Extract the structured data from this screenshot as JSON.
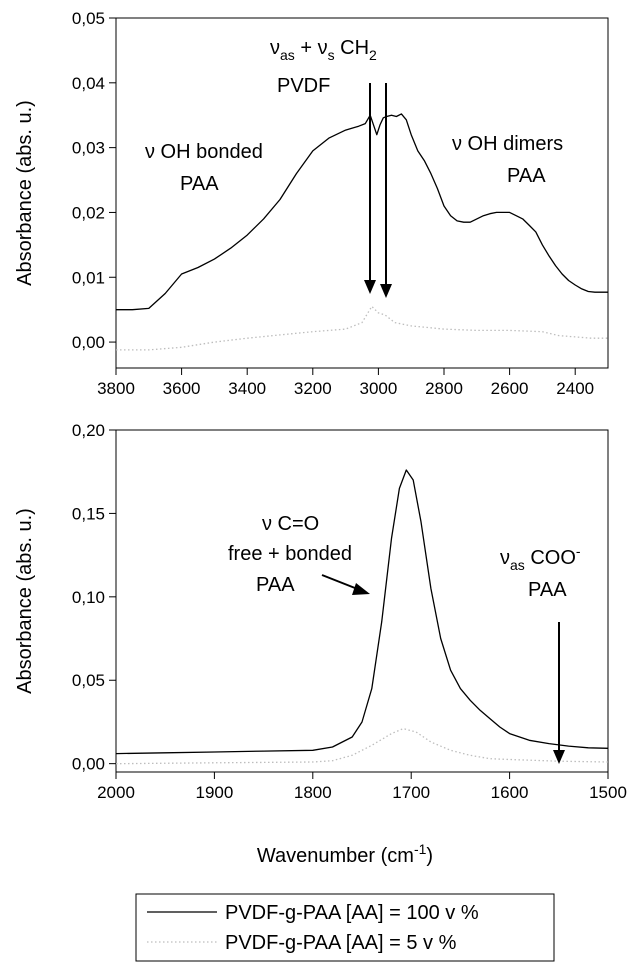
{
  "chart_data": [
    {
      "type": "line",
      "xlim": [
        3800,
        2300
      ],
      "ylim": [
        -0.004,
        0.05
      ],
      "x_reversed": true,
      "xticks": [
        3800,
        3600,
        3400,
        3200,
        3000,
        2800,
        2600,
        2400
      ],
      "xtick_labels": [
        "3800",
        "3600",
        "3400",
        "3200",
        "3000",
        "2800",
        "2600",
        "2400"
      ],
      "yticks": [
        0.0,
        0.01,
        0.02,
        0.03,
        0.04,
        0.05
      ],
      "ytick_labels": [
        "0,00",
        "0,01",
        "0,02",
        "0,03",
        "0,04",
        "0,05"
      ],
      "ylabel": "Absorbance (abs. u.)",
      "series": [
        {
          "name": "PVDF-g-PAA [AA] = 100 v %",
          "style": "solid",
          "color": "#000000",
          "x": [
            3800,
            3750,
            3700,
            3650,
            3600,
            3550,
            3500,
            3450,
            3400,
            3350,
            3300,
            3250,
            3200,
            3150,
            3100,
            3060,
            3040,
            3025,
            3015,
            3005,
            2995,
            2985,
            2975,
            2960,
            2945,
            2930,
            2915,
            2900,
            2880,
            2860,
            2840,
            2820,
            2800,
            2780,
            2760,
            2740,
            2720,
            2700,
            2680,
            2660,
            2640,
            2620,
            2600,
            2580,
            2560,
            2540,
            2520,
            2500,
            2480,
            2460,
            2440,
            2420,
            2400,
            2380,
            2360,
            2340,
            2320,
            2300
          ],
          "y": [
            0.005,
            0.005,
            0.0052,
            0.0075,
            0.0105,
            0.0115,
            0.0128,
            0.0145,
            0.0165,
            0.019,
            0.022,
            0.026,
            0.0295,
            0.0315,
            0.0327,
            0.0333,
            0.0337,
            0.035,
            0.0335,
            0.032,
            0.0335,
            0.0346,
            0.0348,
            0.035,
            0.0348,
            0.0352,
            0.0343,
            0.032,
            0.0295,
            0.028,
            0.026,
            0.0237,
            0.021,
            0.0195,
            0.0187,
            0.0185,
            0.0185,
            0.019,
            0.0195,
            0.0198,
            0.02,
            0.02,
            0.02,
            0.0195,
            0.019,
            0.018,
            0.017,
            0.015,
            0.0133,
            0.0118,
            0.0105,
            0.0095,
            0.0088,
            0.0082,
            0.0078,
            0.0077,
            0.0077,
            0.0077
          ]
        },
        {
          "name": "PVDF-g-PAA [AA] = 5 v %",
          "style": "dotted",
          "color": "#bdbdbd",
          "x": [
            3800,
            3700,
            3600,
            3500,
            3400,
            3300,
            3200,
            3100,
            3050,
            3020,
            3000,
            2980,
            2950,
            2900,
            2800,
            2700,
            2600,
            2500,
            2450,
            2400,
            2350,
            2300
          ],
          "y": [
            -0.0012,
            -0.0012,
            -0.0008,
            0.0,
            0.0006,
            0.0011,
            0.0016,
            0.002,
            0.003,
            0.0055,
            0.0045,
            0.0042,
            0.003,
            0.0025,
            0.002,
            0.0018,
            0.0018,
            0.0016,
            0.001,
            0.0008,
            0.0006,
            0.0006
          ]
        }
      ]
    },
    {
      "type": "line",
      "xlim": [
        2000,
        1500
      ],
      "ylim": [
        -0.005,
        0.2
      ],
      "x_reversed": true,
      "xticks": [
        2000,
        1900,
        1800,
        1700,
        1600,
        1500
      ],
      "xtick_labels": [
        "2000",
        "1900",
        "1800",
        "1700",
        "1600",
        "1500"
      ],
      "yticks": [
        0.0,
        0.05,
        0.1,
        0.15,
        0.2
      ],
      "ytick_labels": [
        "0,00",
        "0,05",
        "0,10",
        "0,15",
        "0,20"
      ],
      "ylabel": "Absorbance (abs. u.)",
      "series": [
        {
          "name": "PVDF-g-PAA [AA] = 100 v %",
          "style": "solid",
          "color": "#000000",
          "x": [
            2000,
            1950,
            1900,
            1850,
            1800,
            1780,
            1760,
            1750,
            1740,
            1730,
            1720,
            1712,
            1705,
            1698,
            1690,
            1680,
            1670,
            1660,
            1650,
            1640,
            1630,
            1620,
            1610,
            1600,
            1580,
            1560,
            1540,
            1520,
            1500
          ],
          "y": [
            0.006,
            0.0065,
            0.007,
            0.0075,
            0.008,
            0.01,
            0.016,
            0.025,
            0.045,
            0.085,
            0.135,
            0.165,
            0.176,
            0.17,
            0.145,
            0.105,
            0.075,
            0.056,
            0.045,
            0.038,
            0.032,
            0.027,
            0.022,
            0.018,
            0.014,
            0.012,
            0.0105,
            0.0095,
            0.0092
          ]
        },
        {
          "name": "PVDF-g-PAA [AA] = 5 v %",
          "style": "dotted",
          "color": "#bdbdbd",
          "x": [
            2000,
            1900,
            1800,
            1780,
            1760,
            1740,
            1720,
            1708,
            1695,
            1680,
            1660,
            1640,
            1620,
            1600,
            1550,
            1500
          ],
          "y": [
            0.0,
            0.0005,
            0.001,
            0.0018,
            0.005,
            0.011,
            0.018,
            0.021,
            0.019,
            0.013,
            0.008,
            0.005,
            0.003,
            0.0025,
            0.0015,
            0.001
          ]
        }
      ]
    }
  ],
  "annotations": {
    "top_chain_ch2": "ν",
    "top_ch2_sub_as": "as",
    "top_ch2_plus": " + ν",
    "top_ch2_sub_s": "s",
    "top_ch2_ch": " CH",
    "top_ch2_sub_2": "2",
    "top_pvdf": "PVDF",
    "top_oh_bonded": "ν OH bonded",
    "top_oh_bonded_paa": "PAA",
    "top_oh_dimers": "ν OH dimers",
    "top_oh_dimers_paa": "PAA",
    "bot_co": "ν C=O",
    "bot_free_bonded": "free + bonded",
    "bot_co_paa": "PAA",
    "bot_coo_nu": "ν",
    "bot_coo_sub": "as",
    "bot_coo_text": " COO",
    "bot_coo_sup": "-",
    "bot_coo_paa": "PAA"
  },
  "xlabel": {
    "main": "Wavenumber (cm",
    "sup": "-1",
    "close": ")"
  },
  "legend": {
    "items": [
      "PVDF-g-PAA [AA] = 100 v %",
      "PVDF-g-PAA [AA] = 5 v %"
    ]
  }
}
